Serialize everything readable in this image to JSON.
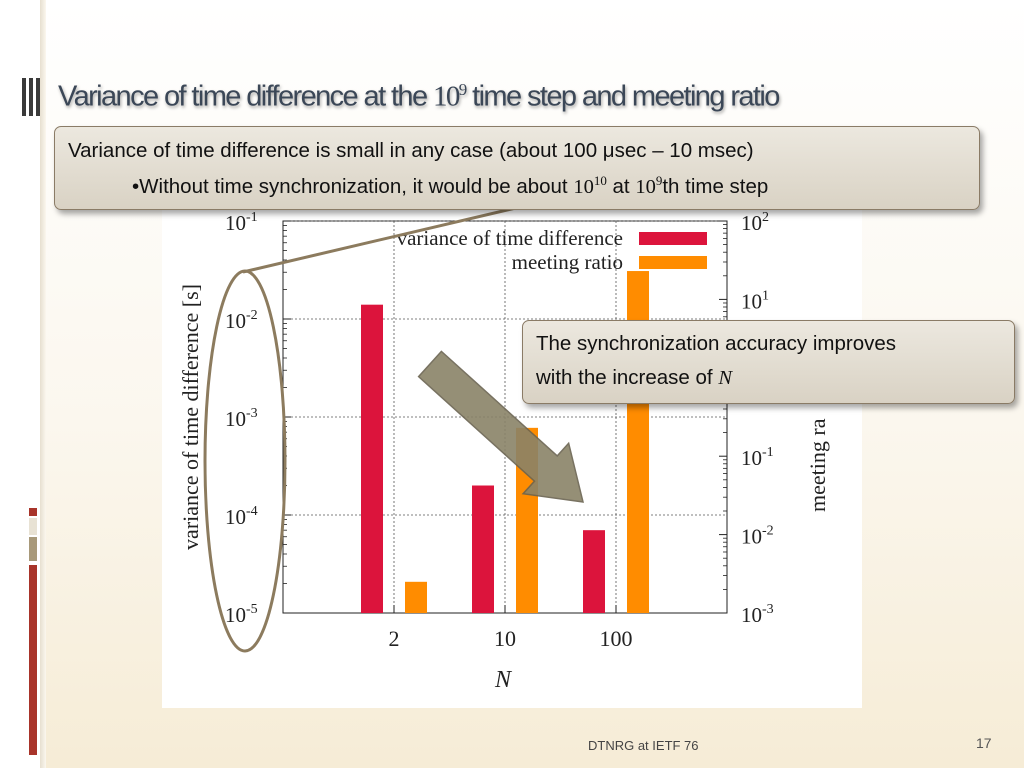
{
  "slide": {
    "title_prefix": "Variance of time difference  at the ",
    "title_base": "10",
    "title_exp": "9",
    "title_suffix": " time step and meeting ratio",
    "footer": "DTNRG at IETF 76",
    "page_number": "17"
  },
  "callout_top": {
    "line1": "Variance of time difference is small in any case (about 100 μsec – 10 msec)",
    "line2_prefix": "•Without time synchronization, it would be about ",
    "line2_base1": "10",
    "line2_exp1": "10",
    "line2_mid": " at ",
    "line2_base2": "10",
    "line2_exp2": "9",
    "line2_suffix": "th time step"
  },
  "callout_right": {
    "line1": "The synchronization accuracy improves",
    "line2_prefix": "with the increase of ",
    "line2_var": "N"
  },
  "colors": {
    "variance": "#dc143c",
    "meeting": "#ff8c00",
    "callout_border": "#8a7b66",
    "annotation": "#8c7b5e",
    "stripe_red": "#a8342a",
    "stripe_tan": "#a8997a"
  },
  "chart_data": {
    "type": "bar",
    "categories": [
      "2",
      "10",
      "100"
    ],
    "xlabel": "N",
    "ylabel_left": "variance of time difference [s]",
    "ylabel_right": "meeting ra",
    "y_left_scale": "log",
    "y_left_range": [
      1e-05,
      0.1
    ],
    "y_left_ticks": [
      {
        "base": "10",
        "exp": "-1"
      },
      {
        "base": "10",
        "exp": "-2"
      },
      {
        "base": "10",
        "exp": "-3"
      },
      {
        "base": "10",
        "exp": "-4"
      },
      {
        "base": "10",
        "exp": "-5"
      }
    ],
    "y_right_scale": "log",
    "y_right_range": [
      0.001,
      100
    ],
    "y_right_ticks": [
      {
        "base": "10",
        "exp": "2"
      },
      {
        "base": "10",
        "exp": "1"
      },
      {
        "base": "10",
        "exp": "-1"
      },
      {
        "base": "10",
        "exp": "-2"
      },
      {
        "base": "10",
        "exp": "-3"
      }
    ],
    "grid": true,
    "legend_position": "top-right",
    "series": [
      {
        "name": "variance of time difference",
        "axis": "left",
        "values": [
          0.014,
          0.0002,
          7e-05
        ]
      },
      {
        "name": "meeting ratio",
        "axis": "right",
        "values": [
          0.0025,
          0.23,
          23
        ]
      }
    ]
  }
}
